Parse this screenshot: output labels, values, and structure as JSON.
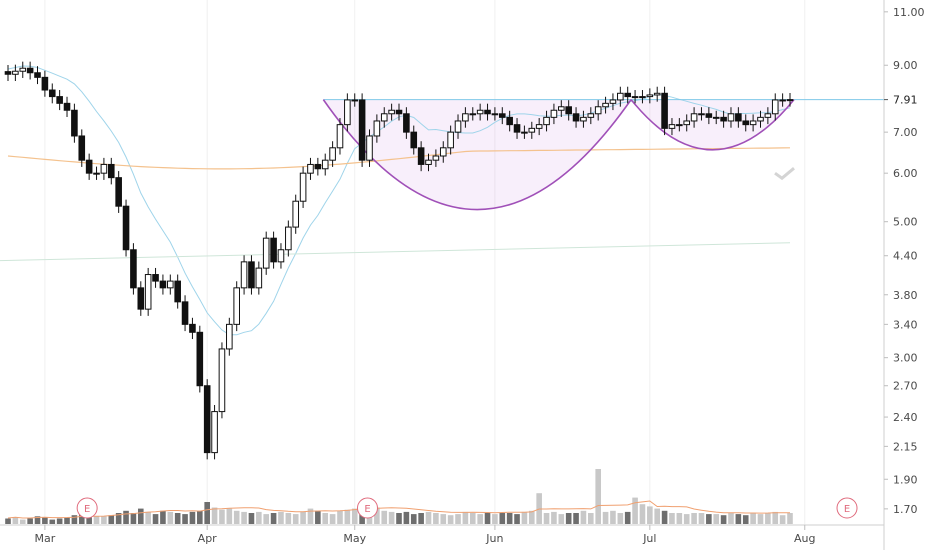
{
  "chart_data": {
    "type": "candlestick",
    "y_scale": "log",
    "ylim": [
      1.6,
      11.5
    ],
    "y_ticks": [
      "11.00",
      "9.00",
      "7.00",
      "6.00",
      "5.00",
      "4.40",
      "3.80",
      "3.40",
      "3.00",
      "2.70",
      "2.40",
      "2.15",
      "1.90",
      "1.70"
    ],
    "current_price": "7.91",
    "resistance_level": 7.91,
    "x_labels": [
      {
        "label": "Mar",
        "index": 5
      },
      {
        "label": "Apr",
        "index": 27
      },
      {
        "label": "May",
        "index": 47
      },
      {
        "label": "Jun",
        "index": 66
      },
      {
        "label": "Jul",
        "index": 87
      },
      {
        "label": "Aug",
        "index": 108
      }
    ],
    "earnings_markers": [
      {
        "label": "E",
        "index": 11
      },
      {
        "label": "E",
        "index": 49
      },
      {
        "label": "E",
        "index": 114
      }
    ],
    "closes": [
      8.7,
      8.8,
      8.9,
      8.75,
      8.6,
      8.2,
      8.0,
      7.8,
      7.6,
      6.9,
      6.3,
      6.0,
      6.0,
      6.2,
      5.9,
      5.3,
      4.5,
      3.9,
      3.6,
      4.1,
      4.0,
      3.9,
      4.0,
      3.7,
      3.4,
      3.3,
      2.7,
      2.1,
      2.45,
      3.1,
      3.4,
      3.9,
      4.3,
      3.9,
      4.2,
      4.7,
      4.3,
      4.5,
      4.9,
      5.4,
      6.0,
      6.2,
      6.1,
      6.3,
      6.6,
      7.2,
      7.9,
      7.9,
      6.3,
      6.9,
      7.3,
      7.5,
      7.6,
      7.5,
      7.0,
      6.6,
      6.2,
      6.3,
      6.4,
      6.6,
      7.0,
      7.3,
      7.5,
      7.5,
      7.6,
      7.5,
      7.5,
      7.4,
      7.2,
      7.0,
      7.0,
      7.1,
      7.2,
      7.4,
      7.6,
      7.7,
      7.5,
      7.3,
      7.4,
      7.5,
      7.7,
      7.8,
      7.9,
      8.1,
      8.0,
      8.0,
      8.0,
      8.05,
      8.1,
      7.1,
      7.2,
      7.2,
      7.3,
      7.5,
      7.5,
      7.4,
      7.4,
      7.3,
      7.5,
      7.3,
      7.2,
      7.3,
      7.4,
      7.5,
      7.9,
      7.9,
      7.91
    ],
    "volume_relative": [
      0.25,
      0.3,
      0.2,
      0.25,
      0.35,
      0.3,
      0.2,
      0.25,
      0.3,
      0.4,
      0.45,
      0.3,
      0.35,
      0.35,
      0.4,
      0.5,
      0.6,
      0.5,
      0.7,
      0.55,
      0.45,
      0.6,
      0.55,
      0.5,
      0.45,
      0.55,
      0.6,
      1.0,
      0.75,
      0.65,
      0.7,
      0.6,
      0.55,
      0.5,
      0.55,
      0.45,
      0.5,
      0.55,
      0.5,
      0.45,
      0.55,
      0.7,
      0.6,
      0.5,
      0.45,
      0.6,
      0.65,
      0.7,
      0.75,
      0.8,
      0.75,
      0.6,
      0.55,
      0.5,
      0.55,
      0.45,
      0.5,
      0.55,
      0.5,
      0.45,
      0.4,
      0.45,
      0.55,
      0.5,
      0.45,
      0.5,
      0.45,
      0.5,
      0.5,
      0.45,
      0.55,
      0.6,
      1.4,
      0.5,
      0.55,
      0.45,
      0.5,
      0.5,
      0.6,
      0.5,
      2.5,
      0.55,
      0.6,
      0.5,
      0.55,
      1.2,
      0.9,
      0.8,
      0.7,
      0.6,
      0.5,
      0.5,
      0.45,
      0.5,
      0.5,
      0.45,
      0.45,
      0.4,
      0.5,
      0.45,
      0.4,
      0.5,
      0.45,
      0.5,
      0.55,
      0.4,
      0.5
    ]
  }
}
